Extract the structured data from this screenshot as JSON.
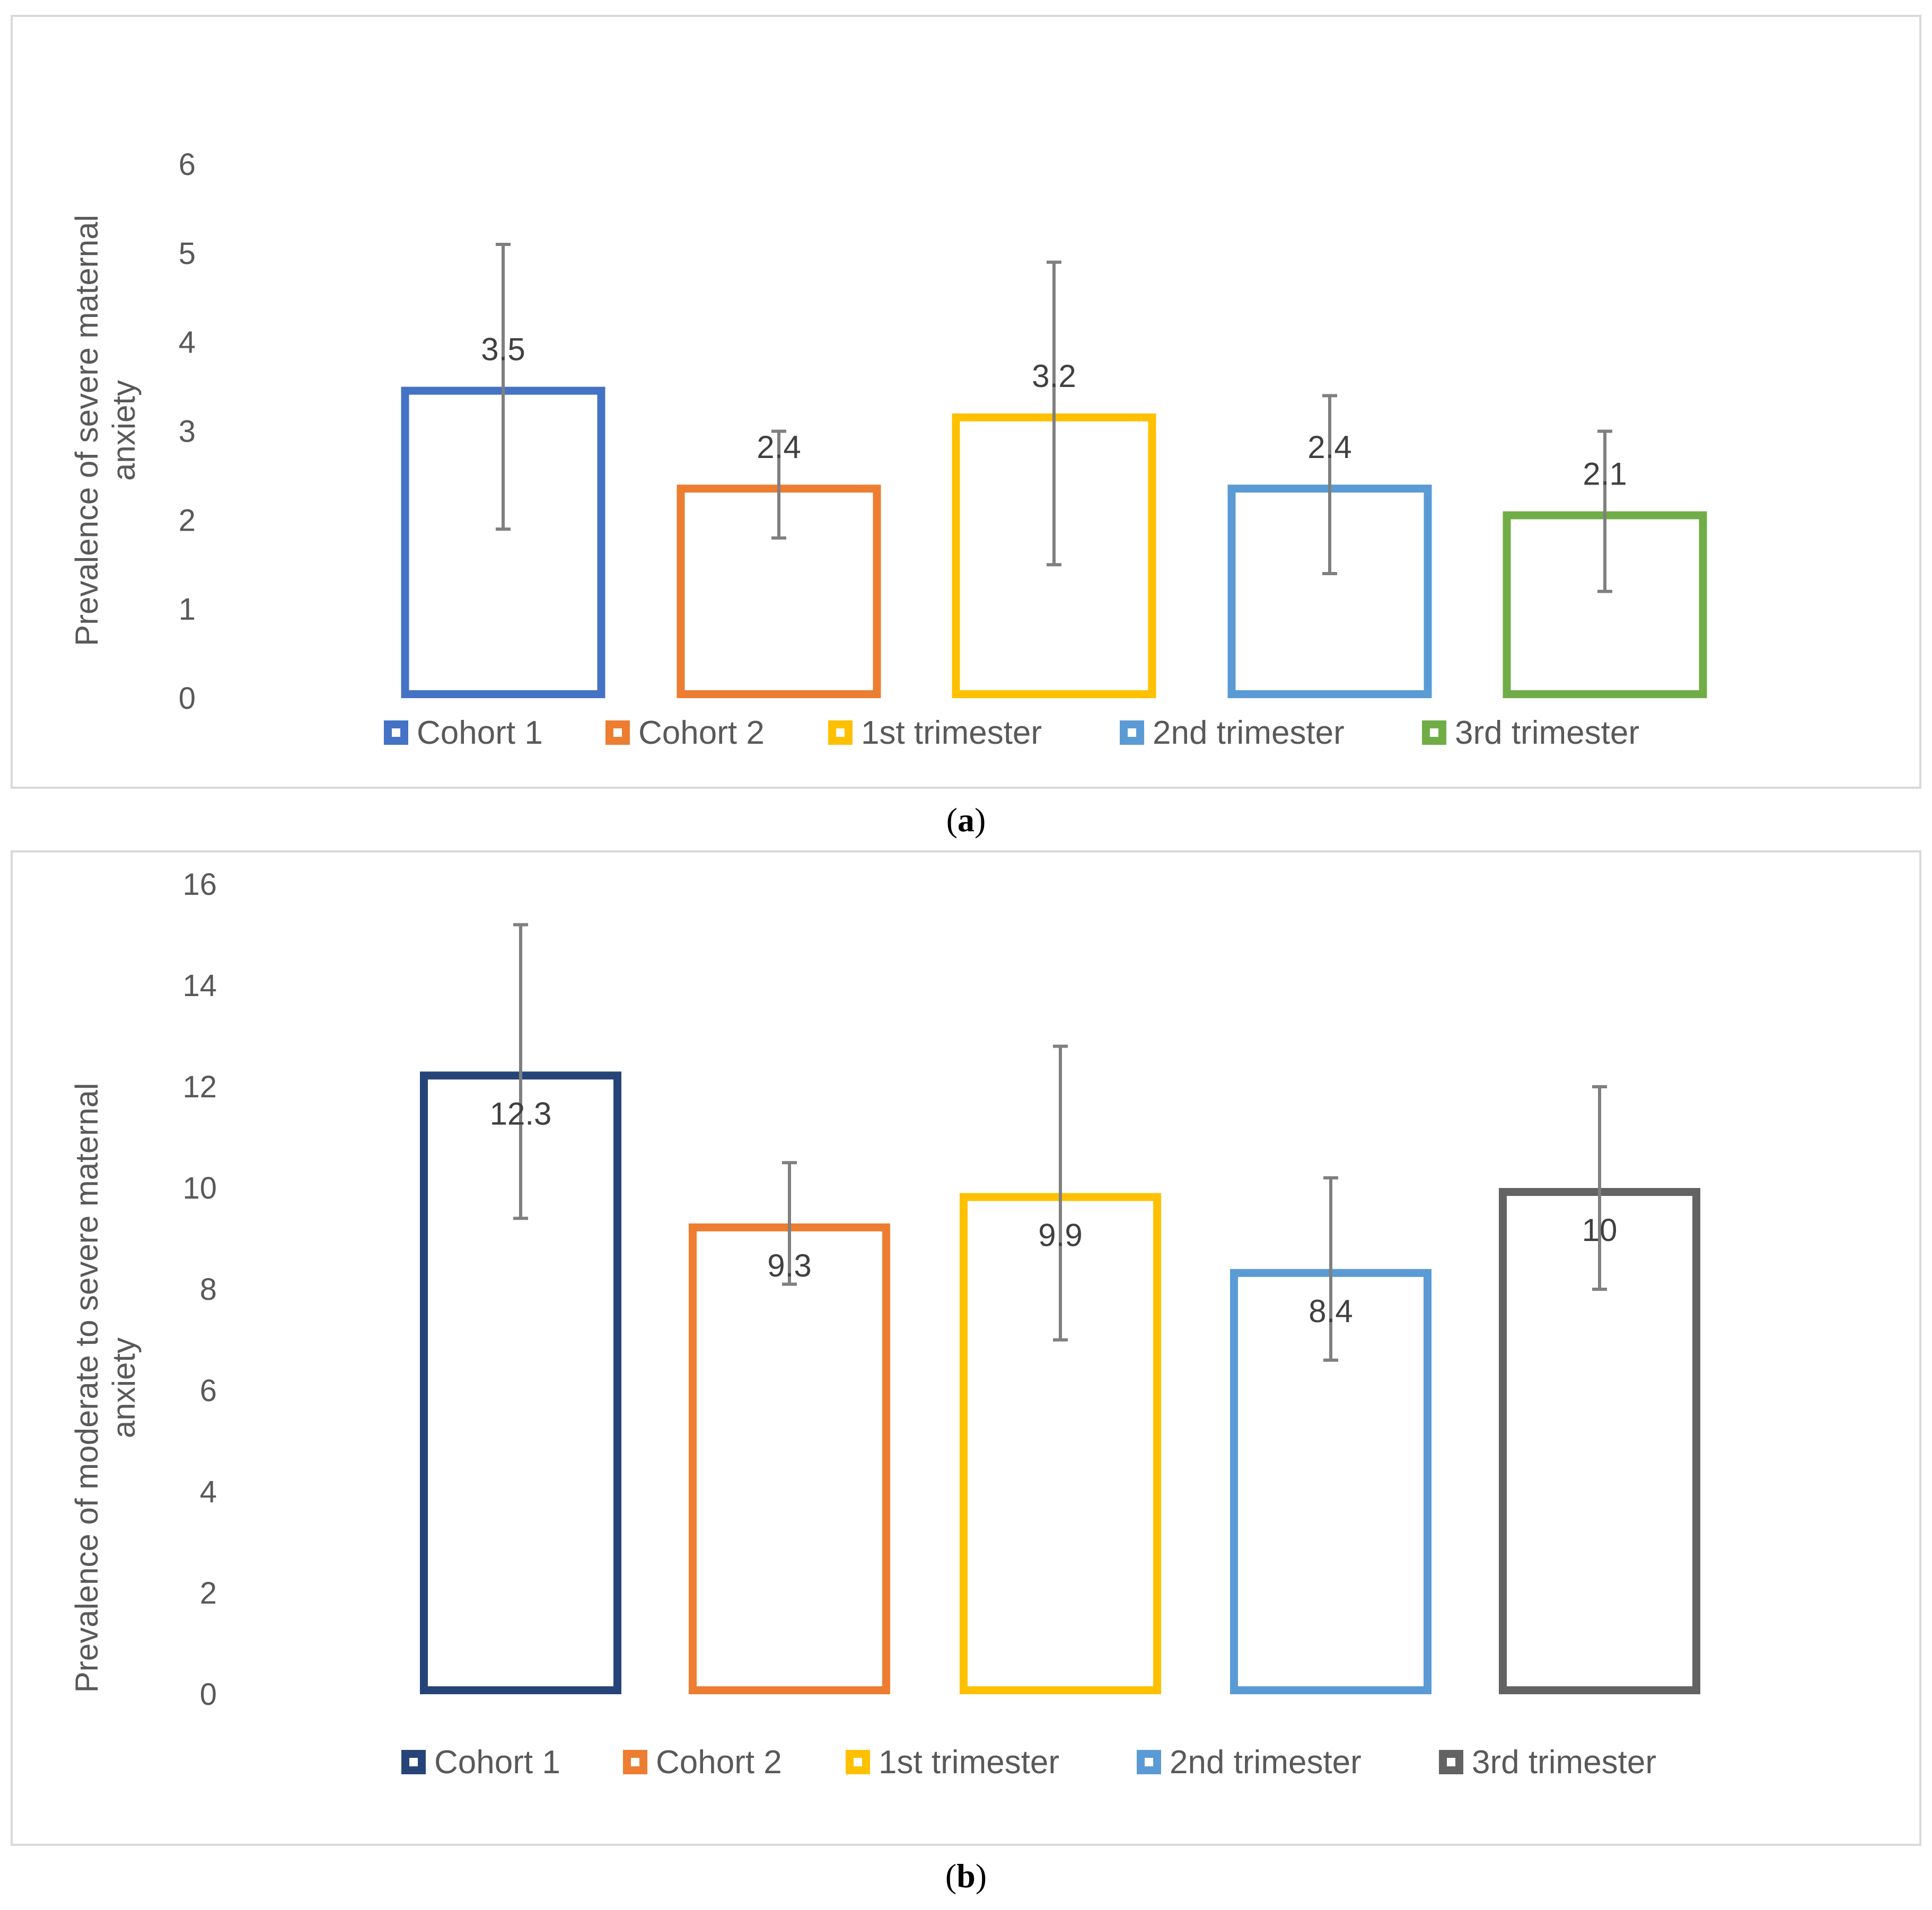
{
  "chart_data": [
    {
      "type": "bar",
      "panel_label": "a",
      "title": "",
      "xlabel": "",
      "ylabel_lines": [
        "Prevalence of severe maternal",
        "anxiety"
      ],
      "ylim": [
        0,
        6
      ],
      "yticks": [
        "0",
        "1",
        "2",
        "3",
        "4",
        "5",
        "6"
      ],
      "categories": [
        "Cohort 1",
        "Cohort 2",
        "1st trimester",
        "2nd trimester",
        "3rd trimester"
      ],
      "values": [
        3.5,
        2.4,
        3.2,
        2.4,
        2.1
      ],
      "data_labels": [
        "3.5",
        "2.4",
        "3.2",
        "2.4",
        "2.1"
      ],
      "error_low": [
        1.9,
        1.8,
        1.5,
        1.4,
        1.2
      ],
      "error_high": [
        5.1,
        3.0,
        4.9,
        3.4,
        3.0
      ],
      "colors": [
        "#4472C4",
        "#ED7D31",
        "#FFC000",
        "#5B9BD5",
        "#70AD47"
      ],
      "legend": [
        "Cohort 1",
        "Cohort 2",
        "1st trimester",
        "2nd trimester",
        "3rd trimester"
      ],
      "legend_position": "bottom",
      "grid": false
    },
    {
      "type": "bar",
      "panel_label": "b",
      "title": "",
      "xlabel": "",
      "ylabel_lines": [
        "Prevalence of moderate to severe maternal",
        "anxiety"
      ],
      "ylim": [
        0,
        16
      ],
      "yticks": [
        "0",
        "2",
        "4",
        "6",
        "8",
        "10",
        "12",
        "14",
        "16"
      ],
      "categories": [
        "Cohort 1",
        "Cohort 2",
        "1st trimester",
        "2nd trimester",
        "3rd trimester"
      ],
      "values": [
        12.3,
        9.3,
        9.9,
        8.4,
        10
      ],
      "data_labels": [
        "12.3",
        "9.3",
        "9.9",
        "8.4",
        "10"
      ],
      "error_low": [
        9.4,
        8.1,
        7.0,
        6.6,
        8.0
      ],
      "error_high": [
        15.2,
        10.5,
        12.8,
        10.2,
        12.0
      ],
      "colors": [
        "#264478",
        "#ED7D31",
        "#FFC000",
        "#5B9BD5",
        "#636363"
      ],
      "legend": [
        "Cohort 1",
        "Cohort 2",
        "1st trimester",
        "2nd trimester",
        "3rd trimester"
      ],
      "legend_position": "bottom",
      "grid": false
    }
  ],
  "captions": {
    "a": "a",
    "b": "b"
  }
}
